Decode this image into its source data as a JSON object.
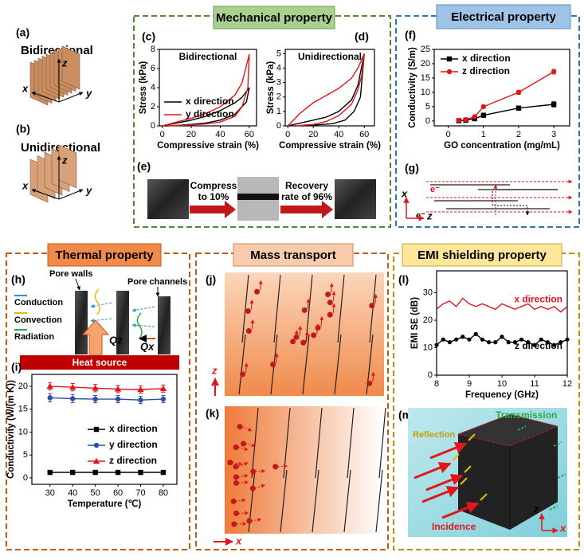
{
  "sections": [
    "Mechanical property",
    "Electrical property",
    "Thermal property",
    "Mass transport",
    "EMI shielding property"
  ],
  "diagrams": {
    "a": {
      "label": "(a)",
      "title": "Bidirectional",
      "axes": [
        "z",
        "x",
        "y"
      ]
    },
    "b": {
      "label": "(b)",
      "title": "Unidirectional",
      "axes": [
        "z",
        "x",
        "y"
      ]
    },
    "e": {
      "label": "(e)",
      "steps": [
        [
          "Compress",
          "to 10%"
        ],
        [
          "Recovery",
          "rate of 96%"
        ]
      ]
    },
    "g": {
      "label": "(g)",
      "carriers": [
        "e⁻",
        "e⁻"
      ],
      "axes": [
        "x",
        "z"
      ]
    },
    "h": {
      "label": "(h)",
      "pore_walls": "Pore walls",
      "pore_channels": "Pore channels",
      "legend": [
        "Conduction",
        "Convection",
        "Radiation"
      ],
      "fluxes": [
        "Qz",
        "Qx"
      ],
      "source": "Heat source"
    },
    "j": {
      "label": "(j)",
      "axis": "z"
    },
    "k": {
      "label": "(k)",
      "axis": "x"
    },
    "m": {
      "label": "(m)",
      "transmission": "Transmission",
      "reflection": "Reflection",
      "incidence": "Incidence",
      "axes": [
        "z",
        "x"
      ]
    }
  },
  "chart_data": [
    {
      "type": "line",
      "label": "(c)",
      "title": "Bidirectional",
      "xlabel": "Compressive strain (%)",
      "ylabel": "Stress (kPa)",
      "xlim": [
        -2,
        65
      ],
      "xticks": [
        0,
        20,
        40,
        60
      ],
      "ylim": [
        0,
        8
      ],
      "yticks": [
        0,
        2,
        4,
        6,
        8
      ],
      "legend": "lower left",
      "series": [
        {
          "name": "x direction",
          "color": "#000000",
          "x": [
            0,
            10,
            20,
            30,
            40,
            50,
            55,
            60,
            58,
            50,
            40,
            30,
            20,
            10,
            2
          ],
          "values": [
            0,
            0.3,
            0.6,
            1,
            1.6,
            2.4,
            3,
            4,
            2.5,
            1.2,
            0.6,
            0.3,
            0.15,
            0.05,
            0
          ]
        },
        {
          "name": "y direction",
          "color": "#e0161b",
          "x": [
            0,
            10,
            20,
            30,
            40,
            50,
            55,
            60,
            59,
            55,
            50,
            40,
            30,
            20,
            10,
            3
          ],
          "values": [
            0,
            0.4,
            0.8,
            1.3,
            2,
            3.2,
            4.5,
            7.5,
            4,
            2,
            1,
            0.4,
            0.2,
            0.1,
            0.05,
            0
          ]
        }
      ]
    },
    {
      "type": "line",
      "label": "(d)",
      "title": "Unidirectional",
      "xlabel": "Compressive strain (%)",
      "ylabel": "Stress (kPa)",
      "xlim": [
        -2,
        68
      ],
      "xticks": [
        0,
        20,
        40,
        60
      ],
      "ylim": [
        0,
        5.3
      ],
      "yticks": [
        0,
        1,
        2,
        3,
        4,
        5
      ],
      "series": [
        {
          "color": "#000000",
          "x": [
            0,
            10,
            20,
            30,
            40,
            50,
            55,
            60,
            57,
            52,
            45,
            35,
            20,
            5
          ],
          "values": [
            0,
            0.2,
            0.4,
            0.6,
            1,
            1.8,
            2.8,
            5,
            2,
            1,
            0.4,
            0.15,
            0.05,
            0
          ]
        },
        {
          "color": "#e0161b",
          "x": [
            0,
            10,
            20,
            30,
            40,
            50,
            55,
            60,
            58,
            55,
            50,
            40,
            30,
            20,
            5
          ],
          "values": [
            0,
            0.9,
            1.6,
            2.1,
            2.6,
            3.3,
            4,
            5,
            3.5,
            2.5,
            1.5,
            0.7,
            0.3,
            0.1,
            0
          ]
        }
      ]
    },
    {
      "type": "line",
      "label": "(f)",
      "xlabel": "GO concentration (mg/mL)",
      "ylabel": "Conductivity (S/m)",
      "xlim": [
        -0.4,
        3.45
      ],
      "xticks": [
        0,
        1,
        2,
        3
      ],
      "ylim": [
        -1.7,
        25
      ],
      "yticks": [
        0,
        5,
        10,
        15,
        20,
        25
      ],
      "legend": "upper left",
      "series": [
        {
          "name": "x direction",
          "color": "#000000",
          "marker": "square",
          "x": [
            0.3,
            0.5,
            0.75,
            1,
            2,
            3
          ],
          "values": [
            0.1,
            0.3,
            0.8,
            2,
            4.5,
            5.8
          ],
          "errors": [
            0.3,
            0.3,
            0.3,
            0.4,
            0.7,
            0.9
          ]
        },
        {
          "name": "z direction",
          "color": "#e0161b",
          "marker": "circle",
          "x": [
            0.3,
            0.5,
            0.75,
            1,
            2,
            3
          ],
          "values": [
            0.2,
            0.5,
            1.5,
            5,
            10,
            17.2
          ],
          "errors": [
            0.3,
            0.3,
            0.3,
            0.5,
            0.7,
            0.8
          ]
        }
      ]
    },
    {
      "type": "line",
      "label": "(i)",
      "xlabel": "Temperature (℃)",
      "ylabel": "Conductivity (W/(m K))",
      "xlim": [
        22,
        86
      ],
      "xticks": [
        30,
        40,
        50,
        60,
        70,
        80
      ],
      "ylim": [
        -1.4,
        22.6
      ],
      "yticks": [
        0,
        5,
        10,
        15,
        20
      ],
      "legend": "center right",
      "x": [
        30,
        40,
        50,
        60,
        70,
        80
      ],
      "series": [
        {
          "name": "x direction",
          "color": "#000000",
          "marker": "square",
          "values": [
            1.2,
            1.2,
            1.2,
            1.2,
            1.2,
            1.2
          ],
          "errors": [
            0.1,
            0.1,
            0.1,
            0.1,
            0.1,
            0.1
          ]
        },
        {
          "name": "y direction",
          "color": "#2b4fa8",
          "marker": "circle",
          "values": [
            17.5,
            17.3,
            17.2,
            17.2,
            17,
            17.2
          ],
          "errors": [
            0.9,
            0.9,
            0.8,
            0.8,
            0.8,
            0.8
          ]
        },
        {
          "name": "z direction",
          "color": "#e0161b",
          "marker": "triangle",
          "values": [
            20,
            19.8,
            19.6,
            19.4,
            19.3,
            19.5
          ],
          "errors": [
            0.8,
            0.8,
            0.8,
            0.8,
            0.8,
            0.8
          ]
        }
      ]
    },
    {
      "type": "line",
      "label": "(l)",
      "xlabel": "Frequency (GHz)",
      "ylabel": "EMI SE (dB)",
      "xlim": [
        8,
        12
      ],
      "xticks": [
        8,
        9,
        10,
        11,
        12
      ],
      "ylim": [
        0,
        38
      ],
      "yticks": [
        0,
        10,
        20,
        30
      ],
      "legend": "inline",
      "x": [
        8,
        8.2,
        8.4,
        8.6,
        8.8,
        9,
        9.2,
        9.4,
        9.6,
        9.8,
        10,
        10.2,
        10.4,
        10.6,
        10.8,
        11,
        11.2,
        11.4,
        11.6,
        11.8,
        12
      ],
      "series": [
        {
          "name": "x direction",
          "color": "#e0161b",
          "values": [
            24,
            26,
            27,
            25,
            28,
            26,
            25,
            26,
            25,
            24,
            26,
            25,
            24,
            25,
            26,
            24,
            25,
            24,
            25,
            23,
            25
          ]
        },
        {
          "name": "z direction",
          "color": "#000000",
          "marker": "circle",
          "values": [
            11,
            13,
            12,
            13,
            14,
            13,
            15,
            13,
            12,
            12,
            14,
            12,
            12,
            13,
            12,
            11,
            13,
            12,
            11,
            12,
            13
          ]
        }
      ]
    }
  ]
}
